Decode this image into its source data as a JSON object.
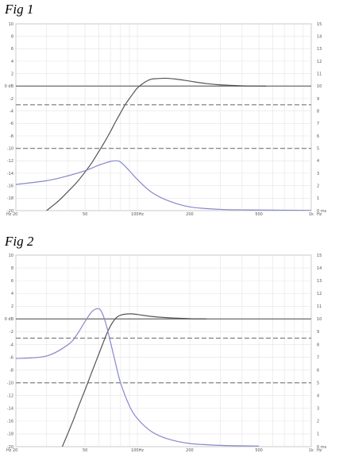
{
  "figures": [
    {
      "title": "Fig 1",
      "chart_data": {
        "type": "line",
        "x_scale": "log",
        "xlim": [
          20,
          1000
        ],
        "x_ticks": [
          {
            "value": 20,
            "label": "Hz 20"
          },
          {
            "value": 50,
            "label": "50"
          },
          {
            "value": 100,
            "label": "100Hz"
          },
          {
            "value": 200,
            "label": "200"
          },
          {
            "value": 500,
            "label": "500"
          },
          {
            "value": 1000,
            "label": "1k"
          }
        ],
        "ylim_left": [
          -20,
          10
        ],
        "y_ticks_left": [
          {
            "value": 10,
            "label": "10"
          },
          {
            "value": 8,
            "label": "8"
          },
          {
            "value": 6,
            "label": "6"
          },
          {
            "value": 4,
            "label": "4"
          },
          {
            "value": 2,
            "label": "2"
          },
          {
            "value": 0,
            "label": "0 dB"
          },
          {
            "value": -2,
            "label": "-2"
          },
          {
            "value": -4,
            "label": "-4"
          },
          {
            "value": -6,
            "label": "-6"
          },
          {
            "value": -8,
            "label": "-8"
          },
          {
            "value": -10,
            "label": "-10"
          },
          {
            "value": -12,
            "label": "-12"
          },
          {
            "value": -14,
            "label": "-14"
          },
          {
            "value": -16,
            "label": "-16"
          },
          {
            "value": -18,
            "label": "-18"
          },
          {
            "value": -20,
            "label": "-20"
          }
        ],
        "ylim_right": [
          0,
          15
        ],
        "y_ticks_right": [
          {
            "value": 15,
            "label": "15"
          },
          {
            "value": 14,
            "label": "14"
          },
          {
            "value": 13,
            "label": "13"
          },
          {
            "value": 12,
            "label": "12"
          },
          {
            "value": 11,
            "label": "11"
          },
          {
            "value": 10,
            "label": "10"
          },
          {
            "value": 9,
            "label": "9"
          },
          {
            "value": 8,
            "label": "8"
          },
          {
            "value": 7,
            "label": "7"
          },
          {
            "value": 6,
            "label": "6"
          },
          {
            "value": 5,
            "label": "5"
          },
          {
            "value": 4,
            "label": "4"
          },
          {
            "value": 3,
            "label": "3"
          },
          {
            "value": 2,
            "label": "2"
          },
          {
            "value": 1,
            "label": "1"
          },
          {
            "value": 0,
            "label": "0 ms"
          }
        ],
        "x_unit_label": "Hz",
        "grid": true,
        "reference_lines": [
          {
            "axis": "left",
            "value": 0,
            "style": "solid"
          },
          {
            "axis": "left",
            "value": -3,
            "style": "dashed"
          },
          {
            "axis": "left",
            "value": -10,
            "style": "dashed"
          }
        ],
        "series": [
          {
            "role": "magnitude",
            "axis": "left",
            "color": "#555555",
            "x": [
              30,
              35,
              40,
              45,
              50,
              55,
              60,
              65,
              70,
              75,
              80,
              85,
              90,
              95,
              100,
              110,
              120,
              130,
              140,
              150,
              170,
              200,
              250,
              300,
              400,
              500,
              550
            ],
            "y": [
              -20,
              -18.5,
              -16.9,
              -15.4,
              -13.8,
              -12.2,
              -10.5,
              -8.9,
              -7.3,
              -5.7,
              -4.3,
              -3,
              -2,
              -1.1,
              -0.3,
              0.6,
              1.1,
              1.2,
              1.25,
              1.25,
              1.1,
              0.8,
              0.4,
              0.2,
              0.05,
              0,
              0
            ]
          },
          {
            "role": "group_delay",
            "axis": "right",
            "color": "#8888cc",
            "x": [
              20,
              30,
              40,
              50,
              60,
              70,
              75,
              80,
              90,
              100,
              120,
              150,
              200,
              300,
              500,
              1000
            ],
            "y": [
              2.1,
              2.4,
              2.8,
              3.2,
              3.65,
              3.95,
              4.0,
              3.9,
              3.2,
              2.5,
              1.5,
              0.8,
              0.3,
              0.1,
              0.05,
              0.02
            ]
          }
        ]
      }
    },
    {
      "title": "Fig 2",
      "chart_data": {
        "type": "line",
        "x_scale": "log",
        "xlim": [
          20,
          1000
        ],
        "x_ticks": [
          {
            "value": 20,
            "label": "Hz 20"
          },
          {
            "value": 50,
            "label": "50"
          },
          {
            "value": 100,
            "label": "100Hz"
          },
          {
            "value": 200,
            "label": "200"
          },
          {
            "value": 500,
            "label": "500"
          },
          {
            "value": 1000,
            "label": "1k"
          }
        ],
        "ylim_left": [
          -20,
          10
        ],
        "y_ticks_left": [
          {
            "value": 10,
            "label": "10"
          },
          {
            "value": 8,
            "label": "8"
          },
          {
            "value": 6,
            "label": "6"
          },
          {
            "value": 4,
            "label": "4"
          },
          {
            "value": 2,
            "label": "2"
          },
          {
            "value": 0,
            "label": "0 dB"
          },
          {
            "value": -2,
            "label": "-2"
          },
          {
            "value": -4,
            "label": "-4"
          },
          {
            "value": -6,
            "label": "-6"
          },
          {
            "value": -8,
            "label": "-8"
          },
          {
            "value": -10,
            "label": "-10"
          },
          {
            "value": -12,
            "label": "-12"
          },
          {
            "value": -14,
            "label": "-14"
          },
          {
            "value": -16,
            "label": "-16"
          },
          {
            "value": -18,
            "label": "-18"
          },
          {
            "value": -20,
            "label": "-20"
          }
        ],
        "ylim_right": [
          0,
          15
        ],
        "y_ticks_right": [
          {
            "value": 15,
            "label": "15"
          },
          {
            "value": 14,
            "label": "14"
          },
          {
            "value": 13,
            "label": "13"
          },
          {
            "value": 12,
            "label": "12"
          },
          {
            "value": 11,
            "label": "11"
          },
          {
            "value": 10,
            "label": "10"
          },
          {
            "value": 9,
            "label": "9"
          },
          {
            "value": 8,
            "label": "8"
          },
          {
            "value": 7,
            "label": "7"
          },
          {
            "value": 6,
            "label": "6"
          },
          {
            "value": 5,
            "label": "5"
          },
          {
            "value": 4,
            "label": "4"
          },
          {
            "value": 3,
            "label": "3"
          },
          {
            "value": 2,
            "label": "2"
          },
          {
            "value": 1,
            "label": "1"
          },
          {
            "value": 0,
            "label": "0 ms"
          }
        ],
        "x_unit_label": "Hz",
        "grid": true,
        "reference_lines": [
          {
            "axis": "left",
            "value": 0,
            "style": "solid"
          },
          {
            "axis": "left",
            "value": -3,
            "style": "dashed"
          },
          {
            "axis": "left",
            "value": -10,
            "style": "dashed"
          }
        ],
        "series": [
          {
            "role": "magnitude",
            "axis": "left",
            "color": "#555555",
            "x": [
              37,
              40,
              43,
              46,
              50,
              53,
              56,
              60,
              63,
              66,
              70,
              75,
              80,
              90,
              100,
              120,
              150,
              200,
              250
            ],
            "y": [
              -20,
              -17.8,
              -15.7,
              -13.6,
              -11.1,
              -9.3,
              -7.6,
              -5.5,
              -4,
              -2.6,
              -1.1,
              0.1,
              0.6,
              0.8,
              0.7,
              0.4,
              0.2,
              0.05,
              0
            ]
          },
          {
            "role": "group_delay",
            "axis": "right",
            "color": "#8888cc",
            "x": [
              20,
              30,
              40,
              45,
              50,
              55,
              60,
              63,
              66,
              70,
              75,
              80,
              90,
              100,
              120,
              150,
              200,
              300,
              500
            ],
            "y": [
              6.9,
              7.1,
              8.0,
              8.8,
              9.8,
              10.6,
              10.8,
              10.4,
              9.6,
              8.2,
              6.5,
              5.0,
              3.2,
              2.2,
              1.2,
              0.6,
              0.25,
              0.1,
              0.05
            ]
          }
        ]
      }
    }
  ]
}
